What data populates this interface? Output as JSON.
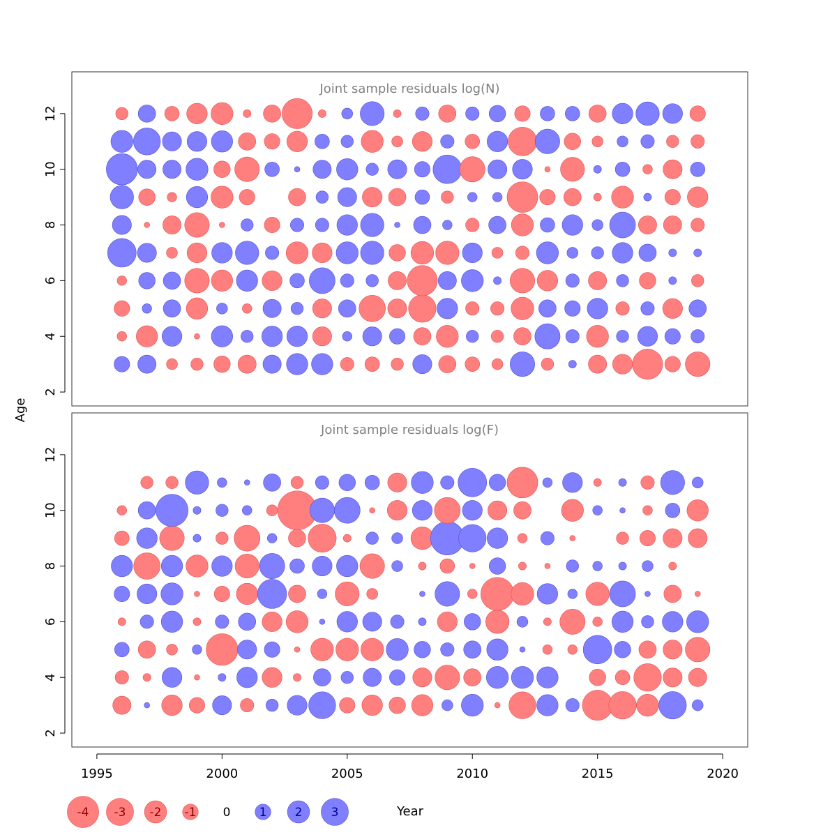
{
  "figure": {
    "xlabel": "Year",
    "ylabel": "Age",
    "colors": {
      "negative": "#ff7f7f",
      "positive": "#7f7fff",
      "negative_stroke": "#e05050",
      "positive_stroke": "#5050d0",
      "title": "#808080"
    }
  },
  "chart_data": [
    {
      "type": "scatter",
      "subtype": "bubble",
      "title": "Joint sample residuals log(N)",
      "xlabel": "Year",
      "ylabel": "Age",
      "xlim": [
        1994,
        2021
      ],
      "ylim": [
        1.5,
        13.5
      ],
      "x_ticks": [
        1995,
        2000,
        2005,
        2010,
        2015,
        2020
      ],
      "y_ticks": [
        2,
        4,
        6,
        8,
        10,
        12
      ],
      "years": [
        1996,
        1997,
        1998,
        1999,
        2000,
        2001,
        2002,
        2003,
        2004,
        2005,
        2006,
        2007,
        2008,
        2009,
        2010,
        2011,
        2012,
        2013,
        2014,
        2015,
        2016,
        2017,
        2018,
        2019
      ],
      "ages": [
        3,
        4,
        5,
        6,
        7,
        8,
        9,
        10,
        11,
        12
      ],
      "residuals_by_age": {
        "3": [
          0.8,
          1.1,
          -0.4,
          -0.5,
          -0.9,
          -1.1,
          1.1,
          1.5,
          1.5,
          -0.6,
          -0.7,
          -0.5,
          1.2,
          -1.0,
          -0.7,
          -0.4,
          2.0,
          -0.5,
          0.2,
          -1.1,
          -1.3,
          -3.0,
          -0.8,
          -2.0
        ],
        "4": [
          -0.3,
          -1.5,
          1.3,
          -0.1,
          1.5,
          0.5,
          1.4,
          1.4,
          -1.2,
          0.3,
          1.2,
          0.8,
          -1.0,
          -1.6,
          0.5,
          -0.5,
          -1.0,
          2.1,
          0.6,
          -1.6,
          0.5,
          1.3,
          0.8,
          0.6
        ],
        "5": [
          -0.8,
          0.3,
          1.0,
          -1.5,
          0.4,
          -0.3,
          1.1,
          0.5,
          -1.2,
          1.0,
          -2.3,
          -1.2,
          -2.5,
          1.4,
          -0.6,
          -0.6,
          -1.7,
          1.0,
          0.8,
          1.4,
          -0.6,
          0.6,
          -1.3,
          1.0
        ],
        "6": [
          -0.3,
          0.9,
          1.0,
          -2.0,
          -1.5,
          1.5,
          -1.3,
          0.7,
          2.2,
          0.6,
          0.5,
          -1.1,
          -3.0,
          1.1,
          1.6,
          0.2,
          -2.0,
          -1.4,
          0.6,
          -1.1,
          0.5,
          -0.9,
          0.2,
          -0.5
        ],
        "7": [
          2.7,
          1.2,
          -0.4,
          -1.3,
          1.4,
          1.8,
          0.6,
          -1.6,
          -1.3,
          1.6,
          1.8,
          -0.9,
          -1.7,
          -1.8,
          1.3,
          -0.4,
          -0.6,
          1.6,
          0.4,
          0.5,
          1.4,
          1.0,
          0.2,
          0.2
        ],
        "8": [
          1.2,
          -0.1,
          -1.1,
          -2.0,
          -0.1,
          0.5,
          -0.8,
          0.6,
          0.6,
          1.4,
          1.8,
          0.1,
          1.0,
          0.3,
          -0.6,
          1.0,
          -1.6,
          0.7,
          1.4,
          0.4,
          2.2,
          -1.1,
          -1.1,
          -0.6
        ],
        "9": [
          1.8,
          -0.9,
          -0.3,
          1.5,
          -1.6,
          -0.8,
          0.0,
          -1.0,
          0.5,
          1.2,
          -1.3,
          -1.0,
          0.7,
          -0.5,
          0.3,
          0.3,
          -3.1,
          -0.8,
          -1.0,
          -0.2,
          -1.6,
          0.2,
          -0.8,
          -1.4
        ],
        "10": [
          3.2,
          1.1,
          1.1,
          1.6,
          -0.9,
          -2.0,
          0.7,
          0.1,
          1.1,
          1.5,
          0.5,
          1.2,
          0.8,
          2.7,
          -2.1,
          1.2,
          1.3,
          -0.1,
          -1.9,
          0.2,
          0.7,
          -0.3,
          -1.2,
          0.7
        ],
        "11": [
          1.6,
          2.4,
          1.2,
          1.3,
          1.5,
          -1.0,
          -0.8,
          -1.4,
          0.7,
          0.5,
          -1.6,
          -0.4,
          -1.3,
          0.6,
          -0.7,
          1.4,
          -2.7,
          2.0,
          -0.9,
          -0.4,
          0.4,
          0.6,
          -0.5,
          -0.6
        ],
        "12": [
          -0.5,
          1.0,
          -0.7,
          -1.4,
          -1.6,
          -0.2,
          -1.0,
          -3.0,
          -0.2,
          0.4,
          1.9,
          -0.2,
          0.6,
          -1.0,
          0.6,
          0.9,
          -0.8,
          0.7,
          0.7,
          -1.0,
          1.4,
          1.8,
          1.3,
          -0.8
        ]
      }
    },
    {
      "type": "scatter",
      "subtype": "bubble",
      "title": "Joint sample residuals log(F)",
      "xlabel": "Year",
      "ylabel": "Age",
      "xlim": [
        1994,
        2021
      ],
      "ylim": [
        1.5,
        13.5
      ],
      "x_ticks": [
        1995,
        2000,
        2005,
        2010,
        2015,
        2020
      ],
      "y_ticks": [
        2,
        4,
        6,
        8,
        10,
        12
      ],
      "years": [
        1996,
        1997,
        1998,
        1999,
        2000,
        2001,
        2002,
        2003,
        2004,
        2005,
        2006,
        2007,
        2008,
        2009,
        2010,
        2011,
        2012,
        2013,
        2014,
        2015,
        2016,
        2017,
        2018,
        2019
      ],
      "ages": [
        3,
        4,
        5,
        6,
        7,
        8,
        9,
        10,
        11
      ],
      "residuals_by_age": {
        "3": [
          -1.1,
          0.1,
          -1.4,
          -0.8,
          1.2,
          -0.6,
          0.5,
          1.3,
          2.4,
          -0.8,
          -1.4,
          -0.9,
          -1.5,
          0.4,
          1.6,
          -0.1,
          -2.4,
          1.5,
          0.6,
          -3.0,
          -2.5,
          -1.6,
          2.5,
          0.4
        ],
        "4": [
          -0.6,
          -0.2,
          1.3,
          -0.1,
          0.2,
          1.4,
          -1.3,
          -0.2,
          1.0,
          0.5,
          1.1,
          0.8,
          -1.2,
          -2.0,
          -1.0,
          1.6,
          1.6,
          1.5,
          0.0,
          -0.9,
          -0.7,
          -2.5,
          -1.2,
          -1.1
        ],
        "5": [
          0.7,
          -1.0,
          -0.4,
          0.3,
          -3.3,
          1.2,
          0.8,
          -0.1,
          -1.7,
          -1.7,
          -1.7,
          1.6,
          0.9,
          0.6,
          1.0,
          1.5,
          0.1,
          -0.3,
          -0.3,
          2.7,
          0.9,
          -1.0,
          -1.2,
          -2.0
        ],
        "6": [
          -0.2,
          0.6,
          1.5,
          -0.2,
          0.6,
          1.0,
          -1.3,
          -1.6,
          0.1,
          1.4,
          1.2,
          0.6,
          0.2,
          -1.3,
          0.9,
          -1.8,
          0.4,
          -0.2,
          -2.1,
          -0.3,
          1.5,
          0.5,
          1.4,
          1.6
        ],
        "7": [
          0.8,
          1.3,
          1.6,
          -0.1,
          -0.8,
          -1.5,
          2.8,
          -1.0,
          0.3,
          -1.9,
          -0.4,
          0.0,
          0.1,
          2.0,
          -0.3,
          -3.6,
          -1.7,
          1.4,
          0.3,
          -1.8,
          2.2,
          0.1,
          -1.0,
          -0.1
        ],
        "8": [
          1.5,
          -2.3,
          1.5,
          -1.6,
          1.4,
          -1.9,
          2.1,
          0.7,
          1.3,
          1.5,
          -2.0,
          0.4,
          -0.2,
          -0.7,
          -0.1,
          0.9,
          -0.2,
          -0.1,
          0.5,
          0.3,
          0.2,
          0.4,
          -0.2,
          0.0
        ],
        "9": [
          -0.7,
          1.4,
          -2.0,
          0.2,
          -0.5,
          -2.2,
          0.3,
          -1.0,
          -2.6,
          -0.2,
          0.5,
          0.4,
          -1.7,
          3.7,
          2.5,
          1.4,
          -0.3,
          0.6,
          -0.1,
          0.0,
          -0.5,
          -0.8,
          -1.2,
          -1.2
        ],
        "10": [
          -0.3,
          1.0,
          3.4,
          0.2,
          0.5,
          0.3,
          -0.4,
          -5.0,
          2.0,
          2.2,
          -0.1,
          -1.3,
          1.3,
          -2.2,
          1.3,
          -1.2,
          -1.0,
          0.0,
          -1.6,
          0.3,
          0.1,
          -0.3,
          0.7,
          -1.5
        ],
        "11": [
          0.0,
          -0.5,
          -0.5,
          1.8,
          0.3,
          0.1,
          1.0,
          -0.5,
          0.6,
          0.9,
          0.7,
          -1.2,
          1.6,
          0.6,
          2.7,
          0.9,
          -3.1,
          0.3,
          1.3,
          -0.2,
          0.2,
          -0.6,
          1.9,
          0.4
        ]
      }
    }
  ],
  "legend": {
    "placement": "bottom-left",
    "items": [
      {
        "label": "-4",
        "value": -4
      },
      {
        "label": "-3",
        "value": -3
      },
      {
        "label": "-2",
        "value": -2
      },
      {
        "label": "-1",
        "value": -1
      },
      {
        "label": "0",
        "value": 0
      },
      {
        "label": "1",
        "value": 1
      },
      {
        "label": "2",
        "value": 2
      },
      {
        "label": "3",
        "value": 3
      }
    ]
  }
}
